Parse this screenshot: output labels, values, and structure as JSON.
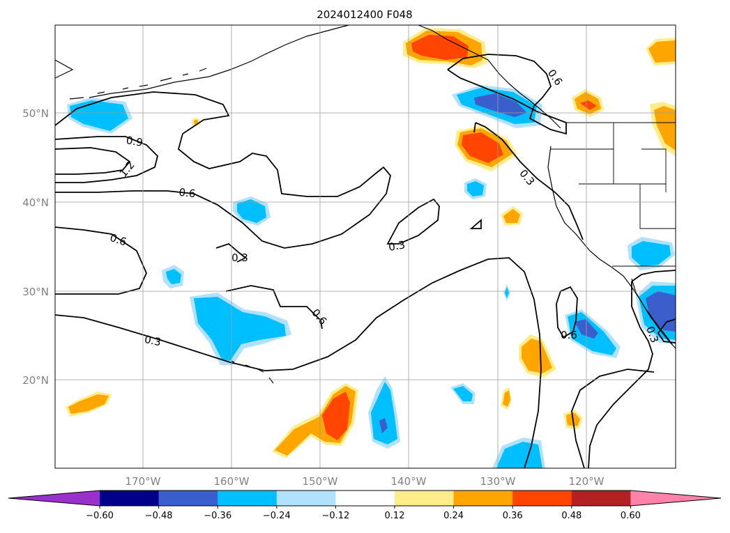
{
  "title": "2024012400 F048",
  "lat_labels": [
    "50°N",
    "40°N",
    "30°N",
    "20°N"
  ],
  "lon_labels": [
    "170°W",
    "160°W",
    "150°W",
    "140°W",
    "130°W",
    "120°W"
  ],
  "contour_labels": [
    "0.9",
    "1.2",
    "0.6",
    "0.6",
    "0.3",
    "0.3",
    "0.6",
    "0.3",
    "0.3",
    "0.6",
    "0.6",
    "0.3"
  ],
  "colorbar": {
    "ticks": [
      "−0.60",
      "−0.48",
      "−0.36",
      "−0.24",
      "−0.12",
      "0.12",
      "0.24",
      "0.36",
      "0.48",
      "0.60"
    ],
    "colors": {
      "n_extend": "#9932cc",
      "n060": "#00008b",
      "n048": "#3a5fcd",
      "n036": "#00bfff",
      "n024": "#b0e2ff",
      "zero": "#ffffff",
      "p012": "#ffec8b",
      "p024": "#ffa500",
      "p036": "#ff4500",
      "p048": "#b22222",
      "p_extend": "#ff82ab"
    }
  }
}
